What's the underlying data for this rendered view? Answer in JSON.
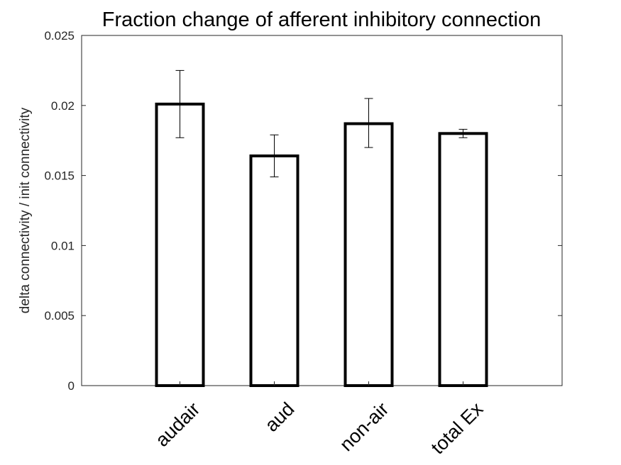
{
  "chart_data": {
    "type": "bar",
    "title": "Fraction change of afferent inhibitory connection",
    "xlabel": "",
    "ylabel": "delta connectivity / init connectivity",
    "categories": [
      "audair",
      "aud",
      "non-air",
      "total Ex"
    ],
    "values": [
      0.0201,
      0.0164,
      0.0187,
      0.018
    ],
    "error_low": [
      0.0177,
      0.0149,
      0.017,
      0.0177
    ],
    "error_high": [
      0.0225,
      0.0179,
      0.0205,
      0.0183
    ],
    "ylim": [
      0,
      0.025
    ],
    "yticks": [
      0,
      0.005,
      0.01,
      0.015,
      0.02,
      0.025
    ],
    "ytick_labels": [
      "0",
      "0.005",
      "0.01",
      "0.015",
      "0.02",
      "0.025"
    ],
    "grid": false,
    "legend": null,
    "bar_fill": "#ffffff",
    "bar_edge": "#000000"
  }
}
